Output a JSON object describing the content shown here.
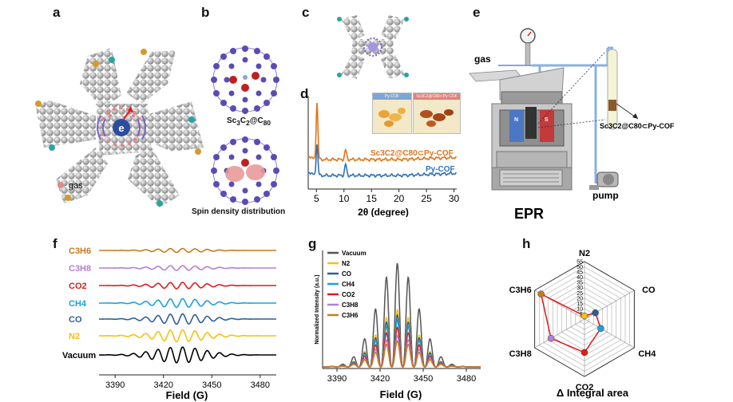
{
  "panels": {
    "a": {
      "letter": "a",
      "legend_label": "gas"
    },
    "b": {
      "letter": "b",
      "label_prefix": "Sc",
      "label_sub1": "3",
      "label_mid": "C",
      "label_sub2": "2",
      "label_at": "@C",
      "label_sub3": "80",
      "caption2": "Spin density distribution"
    },
    "c": {
      "letter": "c"
    },
    "d": {
      "letter": "d",
      "photo_left": "Py-COF",
      "photo_right": "Sc3C2@C80⊂Py-COF",
      "legend_top": "Sc3C2@C80⊂Py-COF",
      "legend_bottom": "Py-COF",
      "xlabel": "2θ (degree)",
      "xticks": [
        "5",
        "10",
        "15",
        "20",
        "25",
        "30"
      ]
    },
    "e": {
      "letter": "e",
      "gas_label": "gas",
      "pump_label": "pump",
      "epr_label": "EPR",
      "sample_label": "Sc3C2@C80⊂Py-COF",
      "magnet_n": "N",
      "magnet_s": "S"
    },
    "f": {
      "letter": "f",
      "series": [
        "C3H6",
        "C3H8",
        "CO2",
        "CH4",
        "CO",
        "N2",
        "Vacuum"
      ],
      "xticks": [
        "3390",
        "3420",
        "3450",
        "3480"
      ],
      "xlabel": "Field (G)"
    },
    "g": {
      "letter": "g",
      "legend": [
        "Vacuum",
        "N2",
        "CO",
        "CH4",
        "CO2",
        "C3H8",
        "C3H6"
      ],
      "ylabel": "Normalized Intensity (a.u.)",
      "xticks": [
        "3390",
        "3420",
        "3450",
        "3480"
      ],
      "xlabel": "Field (G)"
    },
    "h": {
      "letter": "h",
      "axes": [
        "N2",
        "CO",
        "CH4",
        "CO2",
        "C3H8",
        "C3H6"
      ],
      "ticks": [
        "5",
        "10",
        "15",
        "20",
        "25",
        "30",
        "35",
        "40",
        "45",
        "50",
        "55"
      ],
      "xlabel": "Δ Integral area"
    }
  },
  "colors": {
    "C3H6": "#c97a1a",
    "C3H8": "#b57fd6",
    "CO2": "#e01b1b",
    "CH4": "#1ea0dc",
    "CO": "#2f5f97",
    "N2": "#f2c211",
    "Vacuum": "#000000",
    "vacuum_g": "#555555",
    "co_g": "#2f5f97",
    "pycof": "#2f72b8",
    "sc_cof": "#e2741a"
  },
  "chart_data": [
    {
      "panel": "d",
      "type": "line",
      "title": "",
      "xlabel": "2θ (degree)",
      "ylabel": "",
      "xlim": [
        3.5,
        30.5
      ],
      "series": [
        {
          "name": "Sc3C2@C80⊂Py-COF",
          "peaks": [
            5.1,
            10.3
          ]
        },
        {
          "name": "Py-COF",
          "peaks": [
            5.1,
            10.3
          ]
        }
      ]
    },
    {
      "panel": "f",
      "type": "line",
      "xlabel": "Field (G)",
      "xlim": [
        3380,
        3490
      ],
      "series": [
        {
          "name": "C3H6",
          "relative_amplitude": 0.25
        },
        {
          "name": "C3H8",
          "relative_amplitude": 0.3
        },
        {
          "name": "CO2",
          "relative_amplitude": 0.4
        },
        {
          "name": "CH4",
          "relative_amplitude": 0.55
        },
        {
          "name": "CO",
          "relative_amplitude": 0.65
        },
        {
          "name": "N2",
          "relative_amplitude": 0.75
        },
        {
          "name": "Vacuum",
          "relative_amplitude": 1.0
        }
      ]
    },
    {
      "panel": "g",
      "type": "line",
      "xlabel": "Field (G)",
      "ylabel": "Normalized Intensity (a.u.)",
      "xlim": [
        3380,
        3490
      ],
      "series": [
        {
          "name": "Vacuum",
          "peak_height": 1.0
        },
        {
          "name": "N2",
          "peak_height": 0.55
        },
        {
          "name": "CO",
          "peak_height": 0.5
        },
        {
          "name": "CH4",
          "peak_height": 0.45
        },
        {
          "name": "CO2",
          "peak_height": 0.38
        },
        {
          "name": "C3H8",
          "peak_height": 0.3
        },
        {
          "name": "C3H6",
          "peak_height": 0.25
        }
      ]
    },
    {
      "panel": "h",
      "type": "radar",
      "xlabel": "Δ Integral area",
      "range": [
        0,
        55
      ],
      "categories": [
        "N2",
        "CO",
        "CH4",
        "CO2",
        "C3H8",
        "C3H6"
      ],
      "values": [
        3,
        12,
        18,
        32,
        37,
        48
      ]
    }
  ]
}
